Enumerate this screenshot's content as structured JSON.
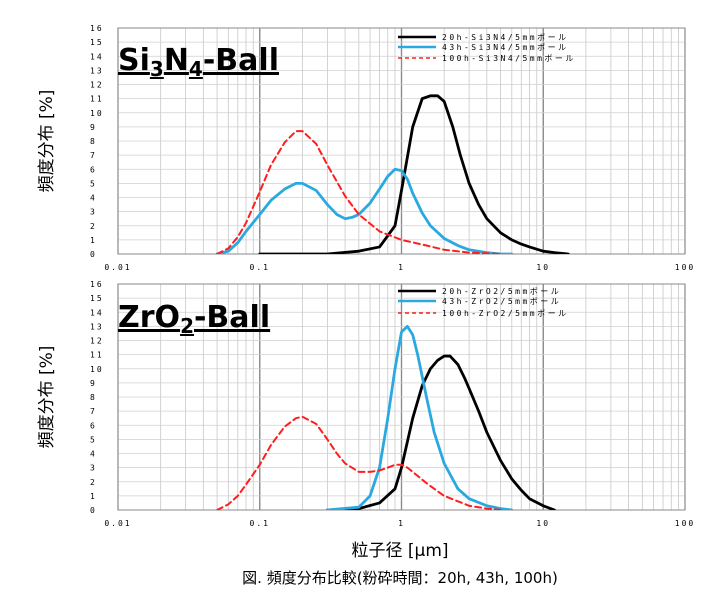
{
  "chart_data": [
    {
      "type": "line",
      "title_parts": [
        "Si",
        "3",
        "N",
        "4",
        "-Ball"
      ],
      "title_text": "Si3N4-Ball",
      "ylabel": "頻度分布 [%]",
      "xscale": "log",
      "xlim": [
        0.01,
        100
      ],
      "ylim": [
        0,
        16
      ],
      "xticks": [
        0.01,
        0.1,
        1,
        10,
        100
      ],
      "xtick_labels": [
        "0.01",
        "0.1",
        "1",
        "10",
        "100"
      ],
      "yticks": [
        0,
        1,
        2,
        3,
        4,
        5,
        6,
        7,
        8,
        9,
        10,
        11,
        12,
        13,
        14,
        15,
        16
      ],
      "ytick_labels": [
        "0",
        "1",
        "2",
        "3",
        "4",
        "5",
        "6",
        "7",
        "8",
        "9",
        "10",
        "11",
        "12",
        "13",
        "14",
        "15",
        "16"
      ],
      "grid": true,
      "legend_position": "top-right",
      "series": [
        {
          "name": "20h-Si3N4/5mmボール",
          "color": "#000000",
          "style": "solid",
          "x": [
            0.1,
            0.3,
            0.5,
            0.7,
            0.9,
            1.0,
            1.2,
            1.4,
            1.6,
            1.8,
            2.0,
            2.3,
            2.6,
            3.0,
            3.5,
            4.0,
            5.0,
            6.0,
            7.0,
            8.0,
            10.0,
            12.0,
            15.0
          ],
          "y": [
            0,
            0,
            0.2,
            0.5,
            2.0,
            4.5,
            9.0,
            11.0,
            11.2,
            11.2,
            10.8,
            9.0,
            7.0,
            5.0,
            3.5,
            2.5,
            1.5,
            1.0,
            0.7,
            0.5,
            0.2,
            0.1,
            0
          ]
        },
        {
          "name": "43h-Si3N4/5mmボール",
          "color": "#29a9e0",
          "style": "solid",
          "x": [
            0.05,
            0.06,
            0.07,
            0.08,
            0.1,
            0.12,
            0.15,
            0.18,
            0.2,
            0.25,
            0.3,
            0.35,
            0.4,
            0.45,
            0.5,
            0.6,
            0.7,
            0.8,
            0.9,
            1.0,
            1.1,
            1.2,
            1.4,
            1.6,
            2.0,
            2.5,
            3.0,
            4.0,
            5.0,
            6.0
          ],
          "y": [
            0,
            0.2,
            0.8,
            1.6,
            2.8,
            3.8,
            4.6,
            5.0,
            5.0,
            4.5,
            3.5,
            2.8,
            2.5,
            2.6,
            2.8,
            3.6,
            4.6,
            5.5,
            6.0,
            5.9,
            5.3,
            4.3,
            2.9,
            2.0,
            1.1,
            0.6,
            0.3,
            0.1,
            0,
            0
          ]
        },
        {
          "name": "100h-Si3N4/5mmボール",
          "color": "#ff1e1e",
          "style": "dashed",
          "x": [
            0.05,
            0.06,
            0.07,
            0.08,
            0.1,
            0.12,
            0.15,
            0.18,
            0.2,
            0.25,
            0.3,
            0.4,
            0.5,
            0.7,
            1.0,
            1.5,
            2.0,
            3.0,
            4.0,
            5.0
          ],
          "y": [
            0,
            0.4,
            1.2,
            2.2,
            4.4,
            6.3,
            7.9,
            8.7,
            8.7,
            7.8,
            6.3,
            4.1,
            2.8,
            1.6,
            1.0,
            0.6,
            0.3,
            0.1,
            0.05,
            0
          ]
        }
      ]
    },
    {
      "type": "line",
      "title_parts": [
        "ZrO",
        "2",
        "-Ball"
      ],
      "title_text": "ZrO2-Ball",
      "ylabel": "頻度分布 [%]",
      "xscale": "log",
      "xlim": [
        0.01,
        100
      ],
      "ylim": [
        0,
        16
      ],
      "xticks": [
        0.01,
        0.1,
        1,
        10,
        100
      ],
      "xtick_labels": [
        "0.01",
        "0.1",
        "1",
        "10",
        "100"
      ],
      "yticks": [
        0,
        1,
        2,
        3,
        4,
        5,
        6,
        7,
        8,
        9,
        10,
        11,
        12,
        13,
        14,
        15,
        16
      ],
      "ytick_labels": [
        "0",
        "1",
        "2",
        "3",
        "4",
        "5",
        "6",
        "7",
        "8",
        "9",
        "10",
        "11",
        "12",
        "13",
        "14",
        "15",
        "16"
      ],
      "grid": true,
      "legend_position": "top-right",
      "series": [
        {
          "name": "20h-ZrO2/5mmボール",
          "color": "#000000",
          "style": "solid",
          "x": [
            0.3,
            0.5,
            0.7,
            0.9,
            1.0,
            1.2,
            1.4,
            1.6,
            1.8,
            2.0,
            2.2,
            2.5,
            2.8,
            3.0,
            3.5,
            4.0,
            5.0,
            6.0,
            7.0,
            8.0,
            10.0,
            12.0
          ],
          "y": [
            0,
            0.1,
            0.5,
            1.5,
            3.0,
            6.5,
            8.8,
            10.0,
            10.6,
            10.9,
            10.9,
            10.3,
            9.3,
            8.6,
            7.0,
            5.5,
            3.5,
            2.2,
            1.4,
            0.8,
            0.3,
            0
          ]
        },
        {
          "name": "43h-ZrO2/5mmボール",
          "color": "#29a9e0",
          "style": "solid",
          "x": [
            0.3,
            0.5,
            0.6,
            0.7,
            0.8,
            0.9,
            1.0,
            1.1,
            1.2,
            1.3,
            1.5,
            1.7,
            2.0,
            2.5,
            3.0,
            4.0,
            5.0,
            6.0
          ],
          "y": [
            0,
            0.2,
            1.0,
            3.0,
            6.5,
            10.0,
            12.6,
            13.0,
            12.4,
            11.0,
            8.0,
            5.5,
            3.3,
            1.5,
            0.8,
            0.3,
            0.1,
            0
          ]
        },
        {
          "name": "100h-ZrO2/5mmボール",
          "color": "#ff1e1e",
          "style": "dashed",
          "x": [
            0.05,
            0.06,
            0.07,
            0.08,
            0.1,
            0.12,
            0.15,
            0.18,
            0.2,
            0.25,
            0.3,
            0.35,
            0.4,
            0.5,
            0.6,
            0.7,
            0.8,
            0.9,
            1.0,
            1.1,
            1.2,
            1.5,
            2.0,
            3.0,
            4.0,
            5.0
          ],
          "y": [
            0,
            0.4,
            1.0,
            1.8,
            3.2,
            4.6,
            5.9,
            6.5,
            6.6,
            6.1,
            5.0,
            4.0,
            3.3,
            2.7,
            2.7,
            2.8,
            3.0,
            3.2,
            3.2,
            3.0,
            2.7,
            1.9,
            1.0,
            0.3,
            0.1,
            0
          ]
        }
      ]
    }
  ],
  "xlabel": "粒子径 [µm]",
  "caption": "図. 頻度分布比較(粉砕時間：20h, 43h, 100h)"
}
